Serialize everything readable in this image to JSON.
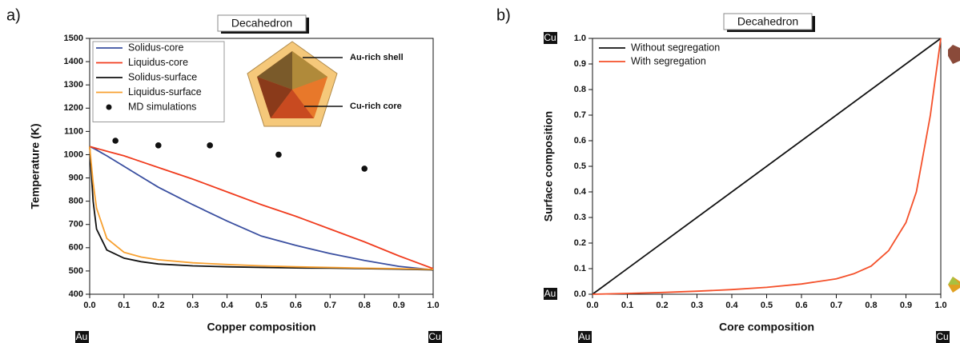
{
  "chart_data": [
    {
      "type": "line",
      "panel": "a)",
      "title": "Decahedron",
      "x_label": "Copper composition",
      "y_label": "Temperature (K)",
      "x_corner_labels": [
        "Au",
        "Cu"
      ],
      "annotations": [
        "Au-rich shell",
        "Cu-rich core"
      ],
      "legend": "upper left",
      "legend_frame": true,
      "x": [
        0,
        0.01,
        0.02,
        0.05,
        0.1,
        0.15,
        0.2,
        0.3,
        0.4,
        0.5,
        0.6,
        0.7,
        0.8,
        0.9,
        1.0
      ],
      "series": [
        {
          "name": "Solidus-core",
          "color": "#3a4fa0",
          "values": [
            1035,
            1028,
            1020,
            995,
            950,
            905,
            860,
            785,
            715,
            650,
            610,
            575,
            545,
            520,
            505
          ]
        },
        {
          "name": "Liquidus-core",
          "color": "#f03c1e",
          "values": [
            1035,
            1031,
            1027,
            1015,
            995,
            970,
            945,
            895,
            840,
            785,
            735,
            680,
            625,
            565,
            510
          ]
        },
        {
          "name": "Solidus-surface",
          "color": "#111111",
          "values": [
            1035,
            800,
            680,
            590,
            555,
            540,
            530,
            522,
            518,
            515,
            513,
            512,
            510,
            508,
            505
          ]
        },
        {
          "name": "Liquidus-surface",
          "color": "#f7a030",
          "values": [
            1035,
            880,
            770,
            640,
            580,
            560,
            548,
            535,
            528,
            522,
            518,
            515,
            512,
            510,
            507
          ]
        },
        {
          "name": "MD simulations",
          "color": "#111111",
          "type": "scatter",
          "x": [
            0.075,
            0.2,
            0.35,
            0.55,
            0.8
          ],
          "values": [
            1060,
            1040,
            1040,
            1000,
            940
          ]
        }
      ],
      "xlim": [
        0,
        1
      ],
      "ylim": [
        400,
        1500
      ],
      "xticks": [
        {
          "value": 0,
          "label": "0.0"
        },
        0.1,
        0.2,
        0.3,
        0.4,
        0.5,
        0.6,
        0.7,
        0.8,
        0.9,
        {
          "value": 1,
          "label": "1.0"
        }
      ],
      "yticks": [
        400,
        500,
        600,
        700,
        800,
        900,
        1000,
        1100,
        1200,
        1300,
        1400,
        1500
      ]
    },
    {
      "type": "line",
      "panel": "b)",
      "title": "Decahedron",
      "x_label": "Core composition",
      "y_label": "Surface composition",
      "x_corner_labels": [
        "Au",
        "Cu"
      ],
      "y_corner_labels": [
        "Au",
        "Cu"
      ],
      "legend": "upper left",
      "legend_frame": false,
      "series": [
        {
          "name": "Without segregation",
          "color": "#111111",
          "x": [
            0,
            1
          ],
          "values": [
            0,
            1
          ]
        },
        {
          "name": "With segregation",
          "color": "#f4502a",
          "x": [
            0,
            0.1,
            0.2,
            0.3,
            0.4,
            0.5,
            0.6,
            0.7,
            0.75,
            0.8,
            0.85,
            0.9,
            0.93,
            0.95,
            0.97,
            0.98,
            0.99,
            1.0
          ],
          "values": [
            0,
            0.003,
            0.007,
            0.012,
            0.018,
            0.027,
            0.04,
            0.06,
            0.08,
            0.11,
            0.17,
            0.28,
            0.4,
            0.55,
            0.7,
            0.8,
            0.9,
            1.0
          ]
        }
      ],
      "xlim": [
        0,
        1
      ],
      "ylim": [
        0,
        1
      ],
      "xticks": [
        {
          "value": 0,
          "label": "0.0"
        },
        0.1,
        0.2,
        0.3,
        0.4,
        0.5,
        0.6,
        0.7,
        0.8,
        0.9,
        {
          "value": 1,
          "label": "1.0"
        }
      ],
      "yticks": [
        {
          "value": 0,
          "label": "0.0"
        },
        0.1,
        0.2,
        0.3,
        0.4,
        0.5,
        0.6,
        0.7,
        0.8,
        0.9,
        {
          "value": 1,
          "label": "1.0"
        }
      ]
    }
  ]
}
